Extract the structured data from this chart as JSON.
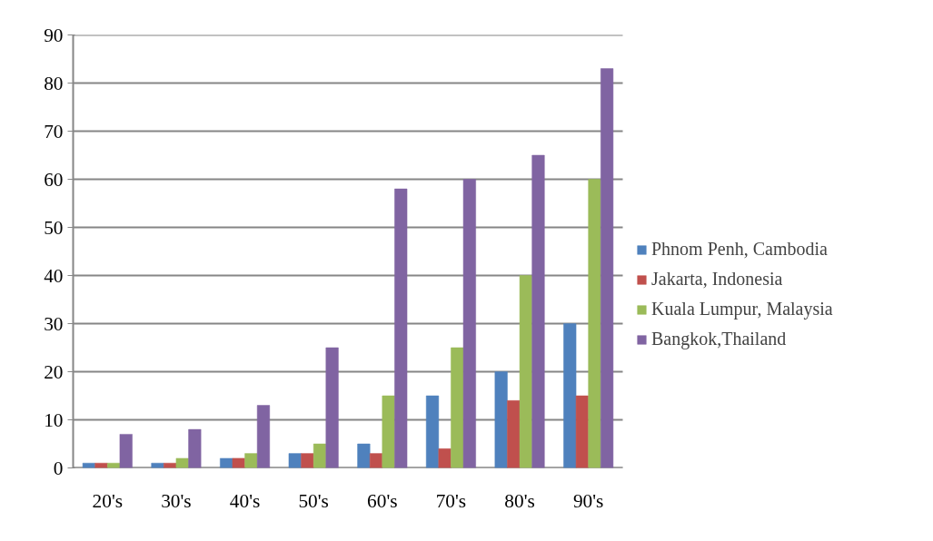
{
  "chart_data": {
    "type": "bar",
    "categories": [
      "20's",
      "30's",
      "40's",
      "50's",
      "60's",
      "70's",
      "80's",
      "90's"
    ],
    "series": [
      {
        "name": "Phnom Penh, Cambodia",
        "color": "#4f81bd",
        "values": [
          1,
          1,
          2,
          3,
          5,
          15,
          20,
          30
        ]
      },
      {
        "name": "Jakarta, Indonesia",
        "color": "#c0504d",
        "values": [
          1,
          1,
          2,
          3,
          3,
          4,
          14,
          15
        ]
      },
      {
        "name": "Kuala Lumpur, Malaysia",
        "color": "#9bbb59",
        "values": [
          1,
          2,
          3,
          5,
          15,
          25,
          40,
          60
        ]
      },
      {
        "name": "Bangkok,Thailand",
        "color": "#8064a2",
        "values": [
          7,
          8,
          13,
          25,
          58,
          60,
          65,
          83
        ]
      }
    ],
    "ylim": [
      0,
      90
    ],
    "yticks": [
      0,
      10,
      20,
      30,
      40,
      50,
      60,
      70,
      80,
      90
    ],
    "grid": "y",
    "legend": "right"
  }
}
